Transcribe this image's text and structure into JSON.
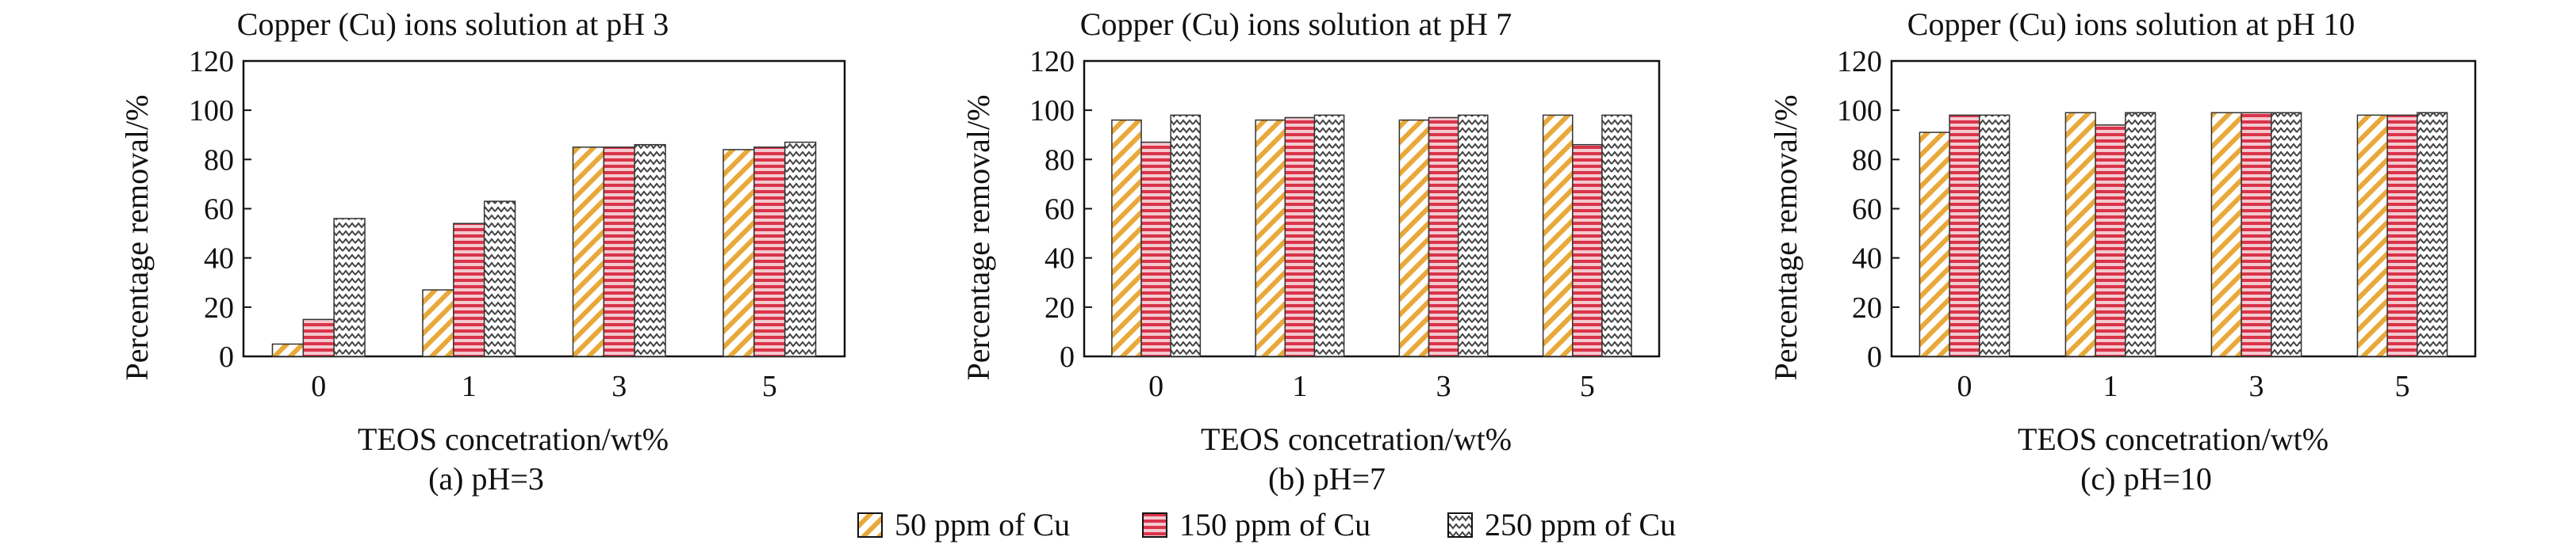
{
  "legend": [
    {
      "label": "50 ppm of Cu",
      "pattern": "diag-yellow"
    },
    {
      "label": "150 ppm of Cu",
      "pattern": "horiz-red"
    },
    {
      "label": "250 ppm of Cu",
      "pattern": "zigzag-gray"
    }
  ],
  "colors": {
    "yellow": "#e8a93a",
    "red": "#d9344a",
    "gray": "#444444"
  },
  "chart_data": [
    {
      "type": "bar",
      "title": "Copper (Cu) ions solution at pH 3",
      "caption": "(a) pH=3",
      "xlabel": "TEOS concetration/wt%",
      "ylabel": "Percentage removal/%",
      "categories": [
        "0",
        "1",
        "3",
        "5"
      ],
      "ylim": [
        0,
        120
      ],
      "yticks": [
        0,
        20,
        40,
        60,
        80,
        100,
        120
      ],
      "series": [
        {
          "name": "50 ppm of Cu",
          "values": [
            5,
            27,
            85,
            84
          ]
        },
        {
          "name": "150 ppm of Cu",
          "values": [
            15,
            54,
            85,
            85
          ]
        },
        {
          "name": "250 ppm of Cu",
          "values": [
            56,
            63,
            86,
            87
          ]
        }
      ]
    },
    {
      "type": "bar",
      "title": "Copper (Cu) ions solution at pH 7",
      "caption": "(b) pH=7",
      "xlabel": "TEOS concetration/wt%",
      "ylabel": "Percentage removal/%",
      "categories": [
        "0",
        "1",
        "3",
        "5"
      ],
      "ylim": [
        0,
        120
      ],
      "yticks": [
        0,
        20,
        40,
        60,
        80,
        100,
        120
      ],
      "series": [
        {
          "name": "50 ppm of Cu",
          "values": [
            96,
            96,
            96,
            98
          ]
        },
        {
          "name": "150 ppm of Cu",
          "values": [
            87,
            97,
            97,
            86
          ]
        },
        {
          "name": "250 ppm of Cu",
          "values": [
            98,
            98,
            98,
            98
          ]
        }
      ]
    },
    {
      "type": "bar",
      "title": "Copper (Cu) ions solution at pH 10",
      "caption": "(c) pH=10",
      "xlabel": "TEOS concetration/wt%",
      "ylabel": "Percentage removal/%",
      "categories": [
        "0",
        "1",
        "3",
        "5"
      ],
      "ylim": [
        0,
        120
      ],
      "yticks": [
        0,
        20,
        40,
        60,
        80,
        100,
        120
      ],
      "series": [
        {
          "name": "50 ppm of Cu",
          "values": [
            91,
            99,
            99,
            98
          ]
        },
        {
          "name": "150 ppm of Cu",
          "values": [
            98,
            94,
            99,
            98
          ]
        },
        {
          "name": "250 ppm of Cu",
          "values": [
            98,
            99,
            99,
            99
          ]
        }
      ]
    }
  ]
}
